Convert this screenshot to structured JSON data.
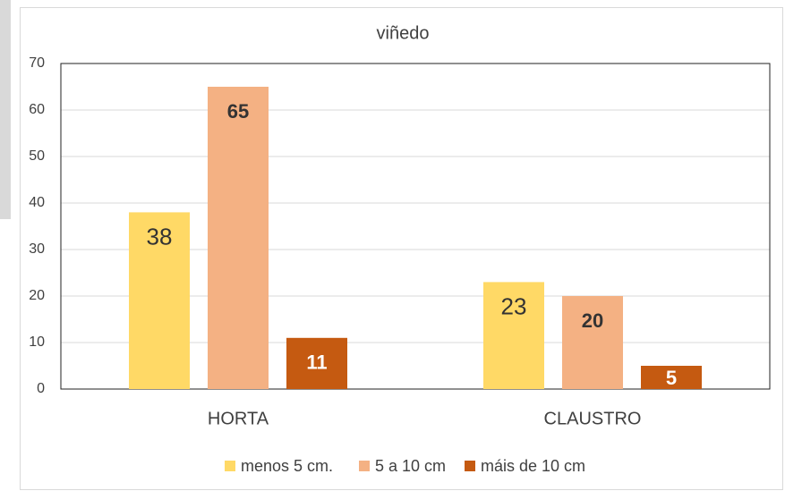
{
  "chart_data": {
    "type": "bar",
    "title": "viñedo",
    "categories": [
      "HORTA",
      "CLAUSTRO"
    ],
    "series": [
      {
        "name": "menos 5 cm.",
        "color": "#FFD966",
        "values": [
          38,
          23
        ]
      },
      {
        "name": "5 a 10 cm",
        "color": "#F4B183",
        "values": [
          65,
          20
        ]
      },
      {
        "name": "máis de 10 cm",
        "color": "#C55A11",
        "values": [
          11,
          5
        ]
      }
    ],
    "ylim": [
      0,
      70
    ],
    "yticks": [
      0,
      10,
      20,
      30,
      40,
      50,
      60,
      70
    ],
    "grid": true,
    "legend": "bottom"
  }
}
